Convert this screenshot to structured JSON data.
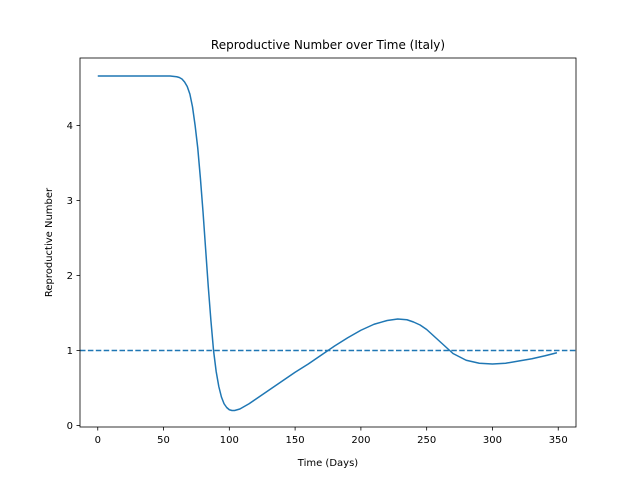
{
  "chart_data": {
    "type": "line",
    "title": "Reproductive Number over Time (Italy)",
    "xlabel": "Time (Days)",
    "ylabel": "Reproductive Number",
    "xlim": [
      -13.5,
      363.5
    ],
    "ylim": [
      -0.02,
      4.9
    ],
    "xticks": [
      0,
      50,
      100,
      150,
      200,
      250,
      300,
      350
    ],
    "yticks": [
      0,
      1,
      2,
      3,
      4
    ],
    "grid": false,
    "series": [
      {
        "color": "#1f77b4",
        "style": "solid",
        "x": [
          0,
          20,
          40,
          55,
          60,
          62,
          64,
          66,
          68,
          70,
          72,
          74,
          76,
          78,
          80,
          82,
          84,
          86,
          88,
          90,
          92,
          94,
          96,
          98,
          100,
          102,
          104,
          106,
          108,
          110,
          115,
          120,
          130,
          140,
          150,
          160,
          170,
          180,
          190,
          200,
          210,
          220,
          228,
          235,
          240,
          245,
          250,
          255,
          260,
          265,
          270,
          280,
          290,
          300,
          310,
          320,
          330,
          340,
          349
        ],
        "y": [
          4.66,
          4.66,
          4.66,
          4.66,
          4.65,
          4.64,
          4.62,
          4.58,
          4.52,
          4.42,
          4.25,
          4.0,
          3.7,
          3.3,
          2.85,
          2.35,
          1.85,
          1.4,
          1.0,
          0.72,
          0.52,
          0.38,
          0.29,
          0.24,
          0.21,
          0.2,
          0.2,
          0.21,
          0.22,
          0.24,
          0.29,
          0.35,
          0.47,
          0.59,
          0.71,
          0.82,
          0.94,
          1.06,
          1.17,
          1.27,
          1.35,
          1.4,
          1.42,
          1.41,
          1.38,
          1.34,
          1.28,
          1.2,
          1.12,
          1.04,
          0.96,
          0.87,
          0.83,
          0.82,
          0.83,
          0.86,
          0.89,
          0.93,
          0.97
        ]
      },
      {
        "color": "#1f77b4",
        "style": "dashed",
        "x": [
          -13.5,
          363.5
        ],
        "y": [
          1,
          1
        ]
      }
    ]
  }
}
